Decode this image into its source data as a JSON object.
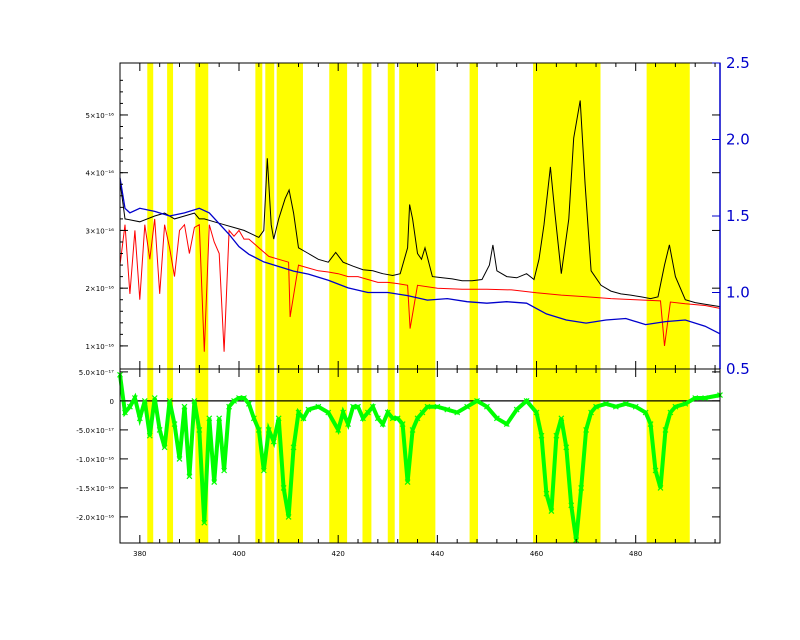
{
  "chart_data": [
    {
      "type": "line",
      "panel": "top",
      "title": "",
      "xlabel": "",
      "ylabel": "",
      "xlim": [
        376,
        497
      ],
      "ylim": [
        0.6,
        5.9
      ],
      "y_unit_exponent": 16,
      "y_ticks": [
        1,
        2,
        3,
        4,
        5
      ],
      "y_tick_labels": [
        "1×10⁻¹⁶",
        "2×10⁻¹⁶",
        "3×10⁻¹⁶",
        "4×10⁻¹⁶",
        "5×10⁻¹⁶"
      ],
      "y2_ticks": [
        0.5,
        1.0,
        1.5,
        2.0,
        2.5
      ],
      "y2_tick_labels": [
        "0.5",
        "1.0",
        "1.5",
        "2.0",
        "2.5"
      ],
      "y2lim": [
        0.5,
        2.5
      ],
      "series": [
        {
          "color": "#000000",
          "x": [
            376,
            377,
            380,
            383,
            385,
            387,
            389,
            391,
            392,
            393,
            395,
            397,
            399,
            401,
            403,
            404,
            405,
            405.7,
            406.5,
            407,
            408,
            409.3,
            410.1,
            411,
            412,
            414,
            416,
            418,
            419.5,
            421,
            423,
            425,
            427,
            429,
            431,
            432.5,
            434,
            434.4,
            435,
            436,
            436.8,
            437.5,
            439,
            441,
            443,
            445,
            447,
            449,
            450.5,
            451.2,
            452,
            454,
            456,
            458,
            459.5,
            460.5,
            461.5,
            462.8,
            463.7,
            465,
            466.5,
            467.5,
            468.8,
            469.8,
            471,
            473,
            475,
            477,
            479,
            481,
            483,
            484.5,
            485.8,
            486.8,
            488,
            490,
            492,
            494,
            497
          ],
          "y": [
            3.85,
            3.2,
            3.15,
            3.25,
            3.3,
            3.2,
            3.25,
            3.3,
            3.2,
            3.2,
            3.15,
            3.1,
            3.05,
            3.0,
            2.92,
            2.88,
            3.0,
            4.25,
            3.1,
            2.85,
            3.2,
            3.55,
            3.7,
            3.3,
            2.7,
            2.6,
            2.5,
            2.45,
            2.62,
            2.45,
            2.38,
            2.32,
            2.3,
            2.25,
            2.22,
            2.25,
            2.7,
            3.45,
            3.2,
            2.6,
            2.5,
            2.7,
            2.2,
            2.18,
            2.16,
            2.13,
            2.13,
            2.15,
            2.4,
            2.75,
            2.3,
            2.2,
            2.18,
            2.25,
            2.15,
            2.5,
            3.1,
            4.1,
            3.3,
            2.25,
            3.2,
            4.6,
            5.25,
            3.8,
            2.3,
            2.05,
            1.95,
            1.9,
            1.88,
            1.85,
            1.82,
            1.85,
            2.4,
            2.75,
            2.2,
            1.8,
            1.75,
            1.72,
            1.68
          ]
        },
        {
          "color": "#ff0000",
          "x": [
            376,
            377,
            378,
            379,
            380,
            381,
            382,
            383,
            384,
            385,
            386,
            387,
            388,
            389,
            390,
            391,
            392,
            393,
            394,
            395,
            396,
            397,
            398,
            399,
            400,
            401,
            402,
            404,
            406,
            408,
            410,
            410.3,
            412,
            414,
            416,
            418,
            420,
            422,
            424,
            426,
            428,
            430,
            432,
            434,
            434.5,
            436,
            440,
            445,
            450,
            455,
            460,
            465,
            470,
            475,
            480,
            485,
            485.8,
            487,
            490,
            494,
            497
          ],
          "y": [
            2.4,
            3.1,
            1.9,
            3.0,
            1.8,
            3.1,
            2.5,
            3.2,
            1.9,
            3.1,
            2.7,
            2.2,
            3.0,
            3.1,
            2.6,
            3.05,
            3.1,
            0.9,
            3.1,
            2.8,
            2.6,
            0.9,
            3.0,
            2.9,
            3.0,
            2.85,
            2.85,
            2.7,
            2.55,
            2.5,
            2.45,
            1.5,
            2.4,
            2.35,
            2.3,
            2.28,
            2.25,
            2.2,
            2.2,
            2.15,
            2.1,
            2.1,
            2.08,
            2.05,
            1.3,
            2.05,
            2.0,
            1.98,
            1.98,
            1.97,
            1.92,
            1.88,
            1.85,
            1.82,
            1.8,
            1.78,
            1.0,
            1.76,
            1.73,
            1.7,
            1.65
          ]
        },
        {
          "color": "#0000cc",
          "axis": "right",
          "x": [
            376,
            377,
            378,
            380,
            383,
            386,
            389,
            392,
            394,
            396,
            398,
            400,
            402,
            405,
            408,
            411,
            414,
            418,
            422,
            426,
            430,
            434,
            438,
            442,
            446,
            450,
            454,
            458,
            462,
            466,
            470,
            474,
            478,
            482,
            486,
            490,
            494,
            497
          ],
          "y": [
            1.75,
            1.55,
            1.52,
            1.55,
            1.53,
            1.5,
            1.52,
            1.55,
            1.52,
            1.45,
            1.38,
            1.3,
            1.25,
            1.2,
            1.17,
            1.14,
            1.12,
            1.08,
            1.03,
            1.0,
            1.0,
            0.98,
            0.95,
            0.96,
            0.94,
            0.93,
            0.94,
            0.93,
            0.86,
            0.82,
            0.8,
            0.82,
            0.83,
            0.79,
            0.81,
            0.82,
            0.78,
            0.73
          ]
        }
      ],
      "bands": [
        [
          381.5,
          382.7
        ],
        [
          385.5,
          386.7
        ],
        [
          391.2,
          393.8
        ],
        [
          403.3,
          404.7
        ],
        [
          405.3,
          407.1
        ],
        [
          407.6,
          412.9
        ],
        [
          418.2,
          421.8
        ],
        [
          424.9,
          426.7
        ],
        [
          430.0,
          431.4
        ],
        [
          432.3,
          439.6
        ],
        [
          446.5,
          448.2
        ],
        [
          459.3,
          472.9
        ],
        [
          482.2,
          490.9
        ]
      ]
    },
    {
      "type": "scatter",
      "panel": "bottom",
      "title": "",
      "xlabel": "",
      "ylabel": "",
      "xlim": [
        376,
        497
      ],
      "ylim": [
        -2.45,
        0.55
      ],
      "y_unit_exponent": 16,
      "x_ticks": [
        380,
        400,
        420,
        440,
        460,
        480
      ],
      "x_tick_labels": [
        "380",
        "400",
        "420",
        "440",
        "460",
        "480"
      ],
      "y_ticks": [
        0.5,
        0,
        -0.5,
        -1.0,
        -1.5,
        -2.0
      ],
      "y_tick_labels": [
        "5.0×10⁻¹⁷",
        "0",
        "-5.0×10⁻¹⁷",
        "-1.0×10⁻¹⁶",
        "-1.5×10⁻¹⁶",
        "-2.0×10⁻¹⁶"
      ],
      "series": [
        {
          "color": "#00ff00",
          "x": [
            376,
            377,
            378,
            379,
            380,
            381,
            382,
            383,
            384,
            385,
            386,
            387,
            388,
            389,
            390,
            391,
            392,
            393,
            394,
            395,
            396,
            397,
            398,
            399,
            400,
            401,
            402,
            403,
            404,
            405,
            406,
            407,
            408,
            409,
            410,
            411,
            412,
            413,
            414,
            416,
            418,
            420,
            421,
            422,
            423,
            424,
            425,
            426,
            427,
            428,
            429,
            430,
            431,
            432,
            433,
            434,
            435,
            436,
            437,
            438,
            440,
            442,
            444,
            446,
            448,
            450,
            452,
            454,
            456,
            458,
            460,
            461,
            462,
            463,
            464,
            465,
            466,
            467,
            468,
            469,
            470,
            471,
            472,
            474,
            476,
            478,
            480,
            482,
            483,
            484,
            485,
            486,
            487,
            488,
            490,
            492,
            494,
            497
          ],
          "y": [
            0.45,
            -0.2,
            -0.1,
            0.05,
            -0.3,
            0.0,
            -0.6,
            0.05,
            -0.5,
            -0.8,
            0.0,
            -0.4,
            -1.0,
            -0.1,
            -1.3,
            0.0,
            -0.5,
            -2.1,
            -0.3,
            -1.4,
            -0.3,
            -1.2,
            -0.1,
            0.0,
            0.05,
            0.05,
            -0.05,
            -0.3,
            -0.5,
            -1.2,
            -0.5,
            -0.7,
            -0.3,
            -1.5,
            -2.0,
            -0.8,
            -0.2,
            -0.3,
            -0.15,
            -0.1,
            -0.2,
            -0.5,
            -0.2,
            -0.4,
            -0.1,
            -0.1,
            -0.3,
            -0.2,
            -0.1,
            -0.3,
            -0.4,
            -0.2,
            -0.3,
            -0.3,
            -0.4,
            -1.4,
            -0.5,
            -0.3,
            -0.2,
            -0.1,
            -0.1,
            -0.15,
            -0.2,
            -0.1,
            0.0,
            -0.1,
            -0.3,
            -0.4,
            -0.15,
            0.0,
            -0.2,
            -0.6,
            -1.6,
            -1.9,
            -0.6,
            -0.3,
            -0.8,
            -1.8,
            -2.4,
            -1.5,
            -0.5,
            -0.2,
            -0.1,
            -0.05,
            -0.1,
            -0.05,
            -0.1,
            -0.2,
            -0.4,
            -1.2,
            -1.5,
            -0.5,
            -0.2,
            -0.1,
            -0.05,
            0.05,
            0.05,
            0.1
          ]
        }
      ],
      "bands": [
        [
          381.5,
          382.7
        ],
        [
          385.5,
          386.7
        ],
        [
          391.2,
          393.8
        ],
        [
          403.3,
          404.7
        ],
        [
          405.3,
          407.1
        ],
        [
          407.6,
          412.9
        ],
        [
          418.2,
          421.8
        ],
        [
          424.9,
          426.7
        ],
        [
          430.0,
          431.4
        ],
        [
          432.3,
          439.6
        ],
        [
          446.5,
          448.2
        ],
        [
          459.3,
          472.9
        ],
        [
          482.2,
          490.9
        ]
      ]
    }
  ],
  "colors": {
    "band": "#ffff00",
    "axis": "#000000",
    "right_axis": "#0000cc"
  }
}
